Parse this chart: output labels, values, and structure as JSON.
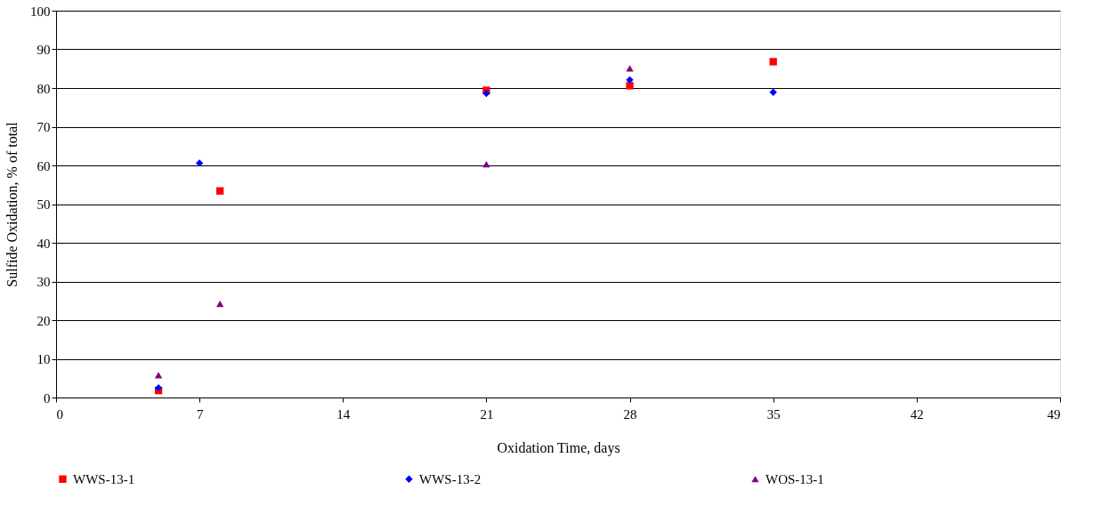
{
  "chart_data": {
    "type": "scatter",
    "xlabel": "Oxidation Time, days",
    "ylabel": "Sulfide Oxidation, % of total",
    "xlim": [
      0,
      49
    ],
    "xticks": [
      0,
      7,
      14,
      21,
      28,
      35,
      42,
      49
    ],
    "ylim": [
      0,
      100
    ],
    "yticks": [
      0,
      10,
      20,
      30,
      40,
      50,
      60,
      70,
      80,
      90,
      100
    ],
    "grid": "y",
    "legend": "bottom",
    "series": [
      {
        "name": "WWS-13-1",
        "color": "#ff0000",
        "marker": "square",
        "x": [
          5,
          8,
          21,
          28,
          35
        ],
        "values": [
          1.8,
          53.4,
          79.4,
          80.6,
          86.8
        ]
      },
      {
        "name": "WWS-13-2",
        "color": "#0000ff",
        "marker": "diamond",
        "x": [
          5,
          7,
          21,
          28,
          35
        ],
        "values": [
          2.5,
          60.6,
          78.6,
          82.1,
          78.9
        ]
      },
      {
        "name": "WOS-13-1",
        "color": "#800080",
        "marker": "triangle",
        "x": [
          5,
          8,
          21,
          28
        ],
        "values": [
          5.8,
          24.2,
          60.3,
          85.1
        ]
      }
    ]
  }
}
